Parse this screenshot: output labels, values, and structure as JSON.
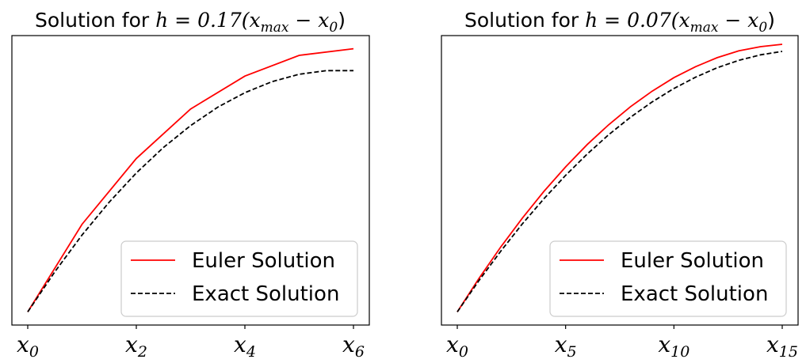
{
  "chart_data": [
    {
      "type": "line",
      "title_text": "Solution for ",
      "title_math": "h = 0.17(x",
      "title_sub1": "max",
      "title_mid": " − x",
      "title_sub2": "0",
      "title_end": ")",
      "xlim": [
        0,
        6
      ],
      "ylim": [
        -0.05,
        1.05
      ],
      "grid": false,
      "legend_placement": "lower-right",
      "xticks": [
        {
          "x": 0,
          "base": "x",
          "sub": "0"
        },
        {
          "x": 2,
          "base": "x",
          "sub": "2"
        },
        {
          "x": 4,
          "base": "x",
          "sub": "4"
        },
        {
          "x": 6,
          "base": "x",
          "sub": "6"
        }
      ],
      "series": [
        {
          "name": "Euler Solution",
          "color": "#ff0000",
          "style": "solid",
          "x": [
            0,
            1,
            2,
            3,
            4,
            5,
            6
          ],
          "y": [
            0.0,
            0.333,
            0.583,
            0.771,
            0.896,
            0.975,
            1.0
          ]
        },
        {
          "name": "Exact Solution",
          "color": "#000000",
          "style": "dashed",
          "x": [
            0,
            0.5,
            1,
            1.5,
            2,
            2.5,
            3,
            3.5,
            4,
            4.5,
            5,
            5.5,
            6
          ],
          "y": [
            0.0,
            0.153,
            0.292,
            0.417,
            0.528,
            0.625,
            0.708,
            0.778,
            0.833,
            0.875,
            0.903,
            0.917,
            0.917
          ]
        }
      ]
    },
    {
      "type": "line",
      "title_text": "Solution for ",
      "title_math": "h = 0.07(x",
      "title_sub1": "max",
      "title_mid": " − x",
      "title_sub2": "0",
      "title_end": ")",
      "xlim": [
        0,
        15
      ],
      "ylim": [
        -0.05,
        1.05
      ],
      "grid": false,
      "legend_placement": "lower-right",
      "xticks": [
        {
          "x": 0,
          "base": "x",
          "sub": "0"
        },
        {
          "x": 5,
          "base": "x",
          "sub": "5"
        },
        {
          "x": 10,
          "base": "x",
          "sub": "10"
        },
        {
          "x": 15,
          "base": "x",
          "sub": "15"
        }
      ],
      "series": [
        {
          "name": "Euler Solution",
          "color": "#ff0000",
          "style": "solid",
          "x": [
            0,
            1,
            2,
            3,
            4,
            5,
            6,
            7,
            8,
            9,
            10,
            11,
            12,
            13,
            14,
            15
          ],
          "y": [
            0.0,
            0.127,
            0.246,
            0.356,
            0.458,
            0.551,
            0.636,
            0.712,
            0.78,
            0.839,
            0.89,
            0.932,
            0.966,
            0.992,
            1.008,
            1.017
          ]
        },
        {
          "name": "Exact Solution",
          "color": "#000000",
          "style": "dashed",
          "x": [
            0,
            1,
            2,
            3,
            4,
            5,
            6,
            7,
            8,
            9,
            10,
            11,
            12,
            13,
            14,
            15
          ],
          "y": [
            0.0,
            0.119,
            0.23,
            0.334,
            0.43,
            0.519,
            0.6,
            0.674,
            0.74,
            0.798,
            0.849,
            0.892,
            0.928,
            0.956,
            0.977,
            0.99
          ]
        }
      ]
    }
  ]
}
